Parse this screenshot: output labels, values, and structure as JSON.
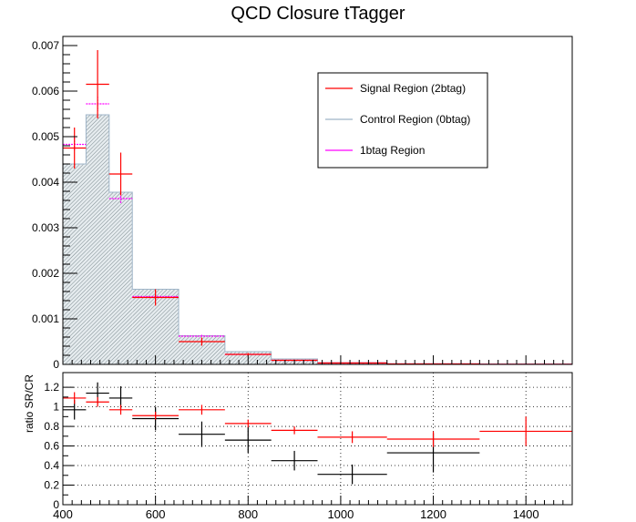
{
  "chart_data": [
    {
      "type": "histogram",
      "title": "QCD Closure tTagger",
      "xlabel": "",
      "ylabel": "",
      "xlim": [
        400,
        1500
      ],
      "ylim": [
        0,
        0.0072
      ],
      "x_ticks": [
        400,
        600,
        800,
        1000,
        1200,
        1400
      ],
      "y_ticks": [
        "0",
        "0.001",
        "0.002",
        "0.003",
        "0.004",
        "0.005",
        "0.006",
        "0.007"
      ],
      "y_tick_values": [
        0,
        0.001,
        0.002,
        0.003,
        0.004,
        0.005,
        0.006,
        0.007
      ],
      "bin_edges": [
        400,
        450,
        500,
        550,
        650,
        750,
        850,
        950,
        1100,
        1300,
        1500
      ],
      "legend": [
        {
          "name": "Signal Region (2btag)",
          "color": "#ff0000"
        },
        {
          "name": "Control Region (0btag)",
          "color": "#9fb5c8"
        },
        {
          "name": "1btag Region",
          "color": "#ff00ff"
        }
      ],
      "series": [
        {
          "name": "Control Region (0btag)",
          "style": "hatched-fill",
          "values": [
            0.0044,
            0.00548,
            0.00378,
            0.00165,
            0.00063,
            0.00028,
            0.00012,
            4e-05,
            1e-05,
            5e-06
          ]
        },
        {
          "name": "Signal Region (2btag)",
          "style": "errorbar",
          "color": "#ff0000",
          "values": [
            0.00475,
            0.00615,
            0.00418,
            0.00147,
            0.0005,
            0.00022,
            9e-05,
            3e-05,
            1e-05,
            4e-06
          ],
          "errors": [
            0.00045,
            0.00075,
            0.00047,
            0.00018,
            9e-05,
            3e-05,
            1.5e-05,
            8e-06,
            3e-06,
            2e-06
          ]
        },
        {
          "name": "1btag Region",
          "style": "errorbar",
          "color": "#ff00ff",
          "values": [
            0.00483,
            0.00572,
            0.00364,
            0.00149,
            0.00062,
            0.00022,
            9e-05,
            3e-05,
            1e-05,
            4e-06
          ],
          "errors": [
            0.00015,
            0.00016,
            0.00012,
            5e-05,
            3e-05,
            1e-05,
            6e-06,
            3e-06,
            2e-06,
            1e-06
          ]
        }
      ]
    },
    {
      "type": "ratio",
      "ylabel": "ratio SR/CR",
      "xlim": [
        400,
        1500
      ],
      "ylim": [
        0,
        1.35
      ],
      "x_ticks": [
        "400",
        "600",
        "800",
        "1000",
        "1200",
        "1400"
      ],
      "x_tick_values": [
        400,
        600,
        800,
        1000,
        1200,
        1400
      ],
      "y_ticks": [
        "0",
        "0.2",
        "0.4",
        "0.6",
        "0.8",
        "1",
        "1.2"
      ],
      "y_tick_values": [
        0,
        0.2,
        0.4,
        0.6,
        0.8,
        1.0,
        1.2
      ],
      "grid": true,
      "series": [
        {
          "name": "",
          "color": "#000000",
          "bins": [
            [
              400,
              450
            ],
            [
              450,
              500
            ],
            [
              500,
              550
            ],
            [
              550,
              650
            ],
            [
              650,
              750
            ],
            [
              750,
              850
            ],
            [
              850,
              950
            ],
            [
              950,
              1100
            ],
            [
              1100,
              1300
            ]
          ],
          "values": [
            0.97,
            1.14,
            1.09,
            0.88,
            0.72,
            0.66,
            0.45,
            0.31,
            0.53
          ],
          "errors": [
            0.1,
            0.11,
            0.12,
            0.12,
            0.13,
            0.13,
            0.1,
            0.1,
            0.2
          ]
        },
        {
          "name": "",
          "color": "#ff0000",
          "bins": [
            [
              400,
              450
            ],
            [
              450,
              500
            ],
            [
              500,
              550
            ],
            [
              550,
              650
            ],
            [
              650,
              750
            ],
            [
              750,
              850
            ],
            [
              850,
              950
            ],
            [
              950,
              1100
            ],
            [
              1100,
              1300
            ],
            [
              1300,
              1500
            ]
          ],
          "values": [
            1.09,
            1.05,
            0.97,
            0.91,
            0.97,
            0.83,
            0.76,
            0.69,
            0.67,
            0.75
          ],
          "errors": [
            0.06,
            0.05,
            0.05,
            0.04,
            0.05,
            0.04,
            0.04,
            0.06,
            0.08,
            0.15
          ]
        }
      ]
    }
  ]
}
